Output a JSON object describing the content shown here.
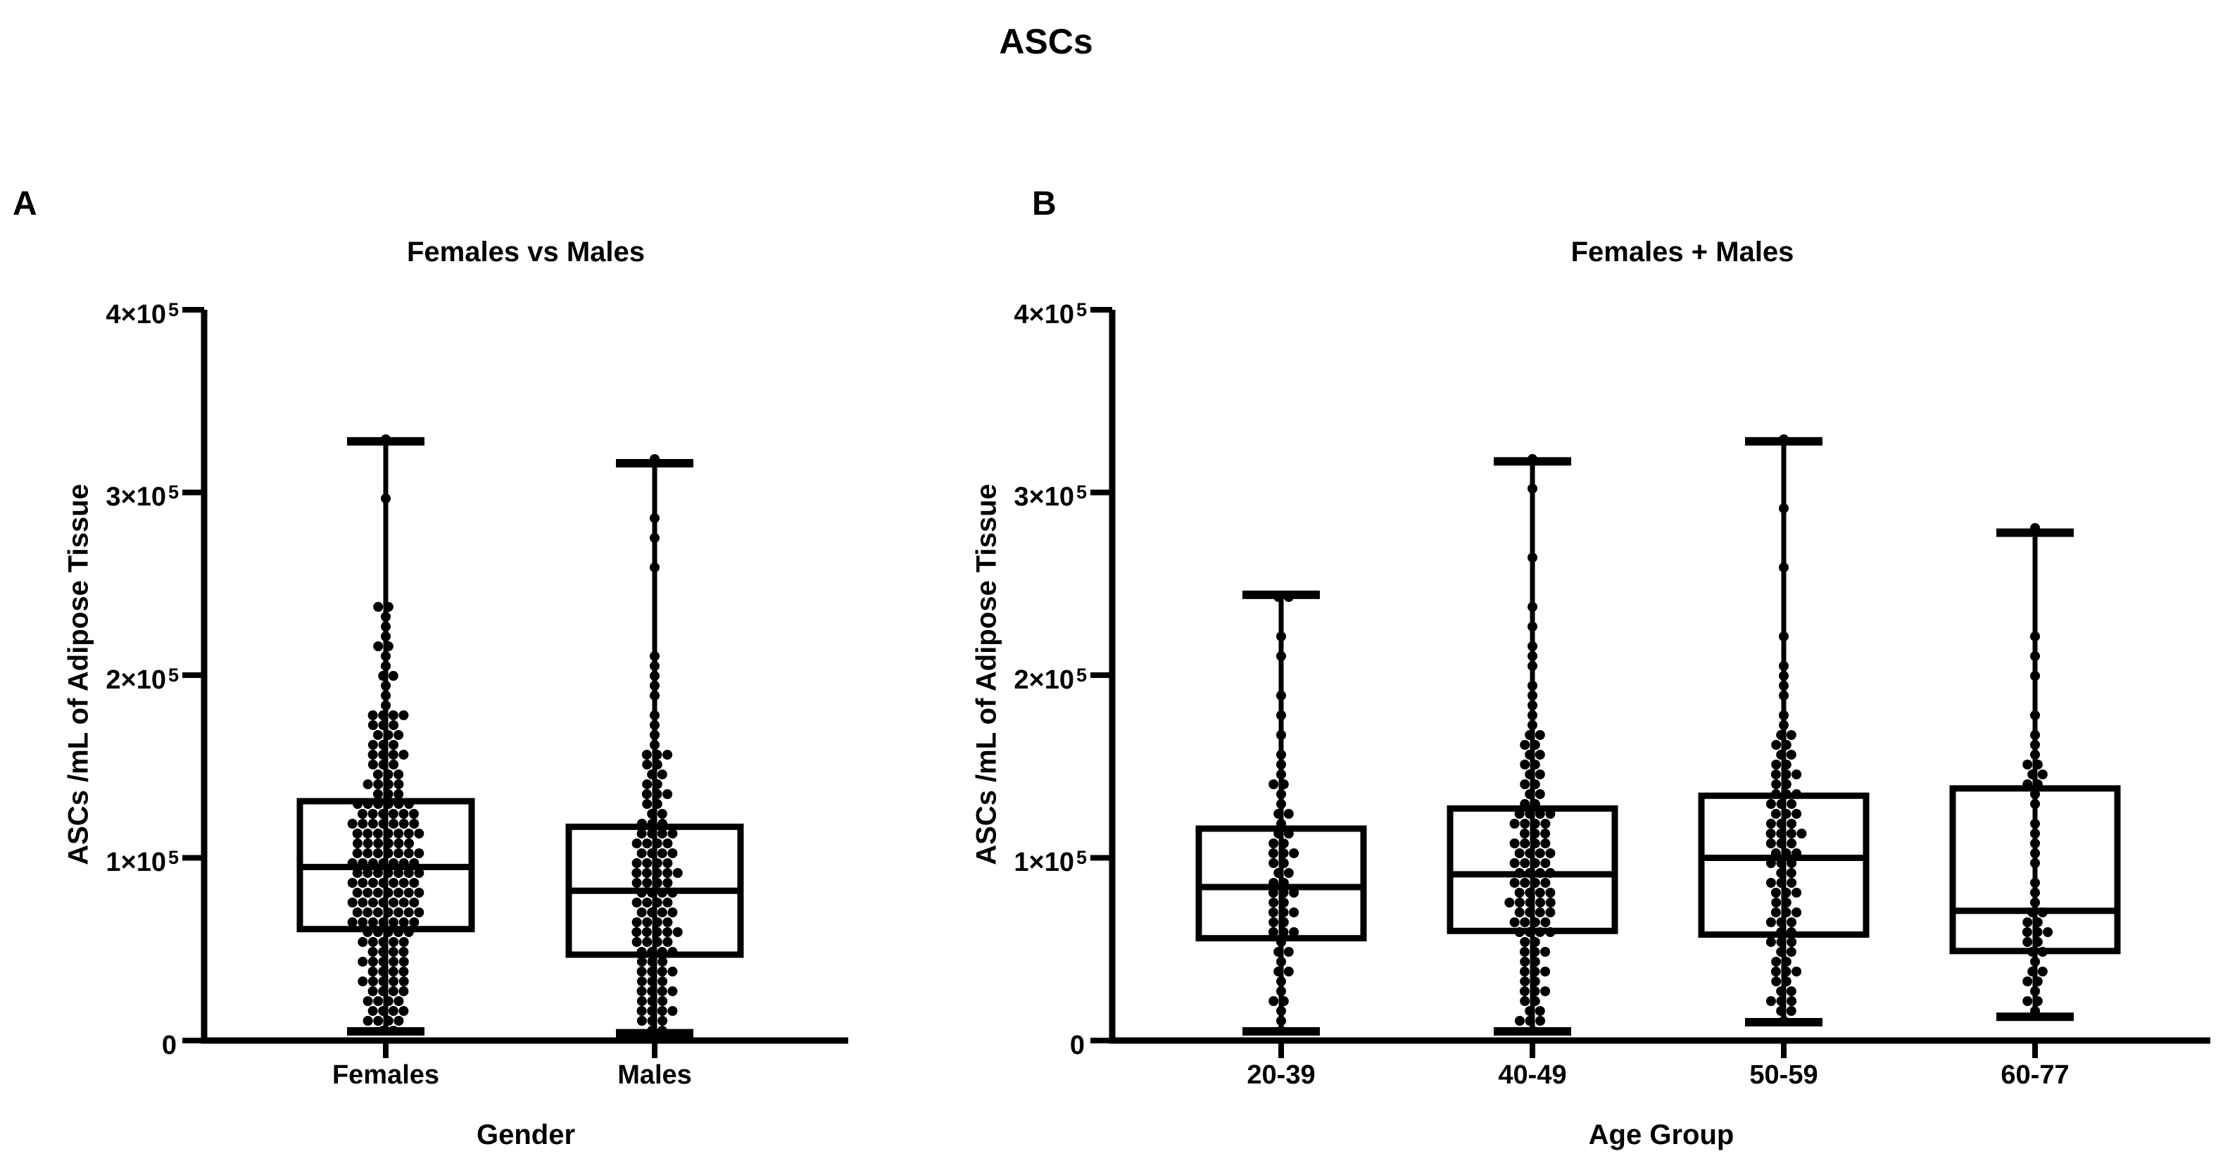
{
  "chart_data": {
    "type": "box",
    "figure_title": "ASCs",
    "grid": "off",
    "dot_color": "#000000",
    "line_color": "#000000",
    "background_color": "#ffffff",
    "y_axis": {
      "label": "ASCs /mL of Adipose Tissue",
      "min": 0,
      "max": 400000,
      "ticks": [
        {
          "value": 0,
          "base": "0",
          "exp": ""
        },
        {
          "value": 100000,
          "base": "1×10",
          "exp": "5"
        },
        {
          "value": 200000,
          "base": "2×10",
          "exp": "5"
        },
        {
          "value": 300000,
          "base": "3×10",
          "exp": "5"
        },
        {
          "value": 400000,
          "base": "4×10",
          "exp": "5"
        }
      ]
    },
    "panels": [
      {
        "panel_label": "A",
        "title": "Females vs Males",
        "x_axis_label": "Gender",
        "groups": [
          {
            "label": "Females",
            "n": 180,
            "whisker_low": 5000,
            "q1": 61000,
            "median": 95000,
            "q3": 131000,
            "whisker_high": 328000,
            "bulk_max": 242000,
            "upper_tail": [
              298000,
              328000
            ]
          },
          {
            "label": "Males",
            "n": 112,
            "whisker_low": 4000,
            "q1": 47000,
            "median": 82000,
            "q3": 117000,
            "whisker_high": 316000,
            "bulk_max": 215000,
            "upper_tail": [
              259000,
              277000,
              284000,
              316000
            ]
          }
        ]
      },
      {
        "panel_label": "B",
        "title": "Females + Males",
        "x_axis_label": "Age Group",
        "groups": [
          {
            "label": "20-39",
            "n": 56,
            "whisker_low": 5000,
            "q1": 56000,
            "median": 84000,
            "q3": 116000,
            "whisker_high": 244000,
            "bulk_max": 195000,
            "upper_tail": [
              213000,
              221000,
              243000,
              244000
            ]
          },
          {
            "label": "40-49",
            "n": 104,
            "whisker_low": 5000,
            "q1": 60000,
            "median": 91000,
            "q3": 127000,
            "whisker_high": 317000,
            "bulk_max": 228000,
            "upper_tail": [
              239000,
              262000,
              300000,
              317000
            ]
          },
          {
            "label": "50-59",
            "n": 86,
            "whisker_low": 10000,
            "q1": 58000,
            "median": 100000,
            "q3": 134000,
            "whisker_high": 328000,
            "bulk_max": 208000,
            "upper_tail": [
              221000,
              261000,
              289000,
              328000
            ]
          },
          {
            "label": "60-77",
            "n": 44,
            "whisker_low": 13000,
            "q1": 49000,
            "median": 71000,
            "q3": 138000,
            "whisker_high": 278000,
            "bulk_max": 180000,
            "upper_tail": [
              200000,
              212000,
              221000,
              278000
            ]
          }
        ]
      }
    ]
  }
}
